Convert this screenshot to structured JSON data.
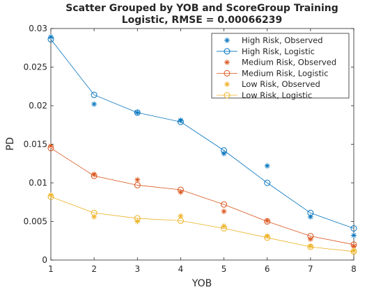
{
  "chart_data": {
    "type": "scatter",
    "title": [
      "Scatter Grouped by YOB and ScoreGroup Training",
      "Logistic, RMSE = 0.00066239"
    ],
    "xlabel": "YOB",
    "ylabel": "PD",
    "xlim": [
      1,
      8
    ],
    "ylim": [
      0,
      0.03
    ],
    "x_ticks": [
      1,
      2,
      3,
      4,
      5,
      6,
      7,
      8
    ],
    "x_tick_labels": [
      "1",
      "2",
      "3",
      "4",
      "5",
      "6",
      "7",
      "8"
    ],
    "y_ticks": [
      0,
      0.005,
      0.01,
      0.015,
      0.02,
      0.025,
      0.03
    ],
    "y_tick_labels": [
      "0",
      "0.005",
      "0.01",
      "0.015",
      "0.02",
      "0.025",
      "0.03"
    ],
    "grid": false,
    "legend_position": "top-right",
    "x": [
      1,
      2,
      3,
      4,
      5,
      6,
      7,
      8
    ],
    "series": [
      {
        "name": "High Risk, Observed",
        "style": "marker",
        "marker": "asterisk",
        "color": "#0072BD",
        "values": [
          0.0289,
          0.0202,
          0.0191,
          0.0181,
          0.0138,
          0.0122,
          0.0056,
          0.0032
        ]
      },
      {
        "name": "High Risk, Logistic",
        "style": "line",
        "marker": "circle",
        "color": "#0072BD",
        "values": [
          0.0286,
          0.0214,
          0.0191,
          0.0179,
          0.0142,
          0.01,
          0.0061,
          0.0041
        ]
      },
      {
        "name": "Medium Risk, Observed",
        "style": "marker",
        "marker": "asterisk",
        "color": "#D95319",
        "values": [
          0.0148,
          0.0111,
          0.0104,
          0.0088,
          0.0063,
          0.0051,
          0.0027,
          0.0018
        ]
      },
      {
        "name": "Medium Risk, Logistic",
        "style": "line",
        "marker": "circle",
        "color": "#D95319",
        "values": [
          0.0145,
          0.0109,
          0.0097,
          0.0091,
          0.0072,
          0.005,
          0.0031,
          0.002
        ]
      },
      {
        "name": "Low Risk, Observed",
        "style": "marker",
        "marker": "asterisk",
        "color": "#EDB120",
        "values": [
          0.0084,
          0.0056,
          0.005,
          0.0057,
          0.0044,
          0.0031,
          0.0018,
          0.0012
        ]
      },
      {
        "name": "Low Risk, Logistic",
        "style": "line",
        "marker": "circle",
        "color": "#EDB120",
        "values": [
          0.0082,
          0.0061,
          0.0054,
          0.0051,
          0.0041,
          0.0029,
          0.0017,
          0.0011
        ]
      }
    ]
  }
}
